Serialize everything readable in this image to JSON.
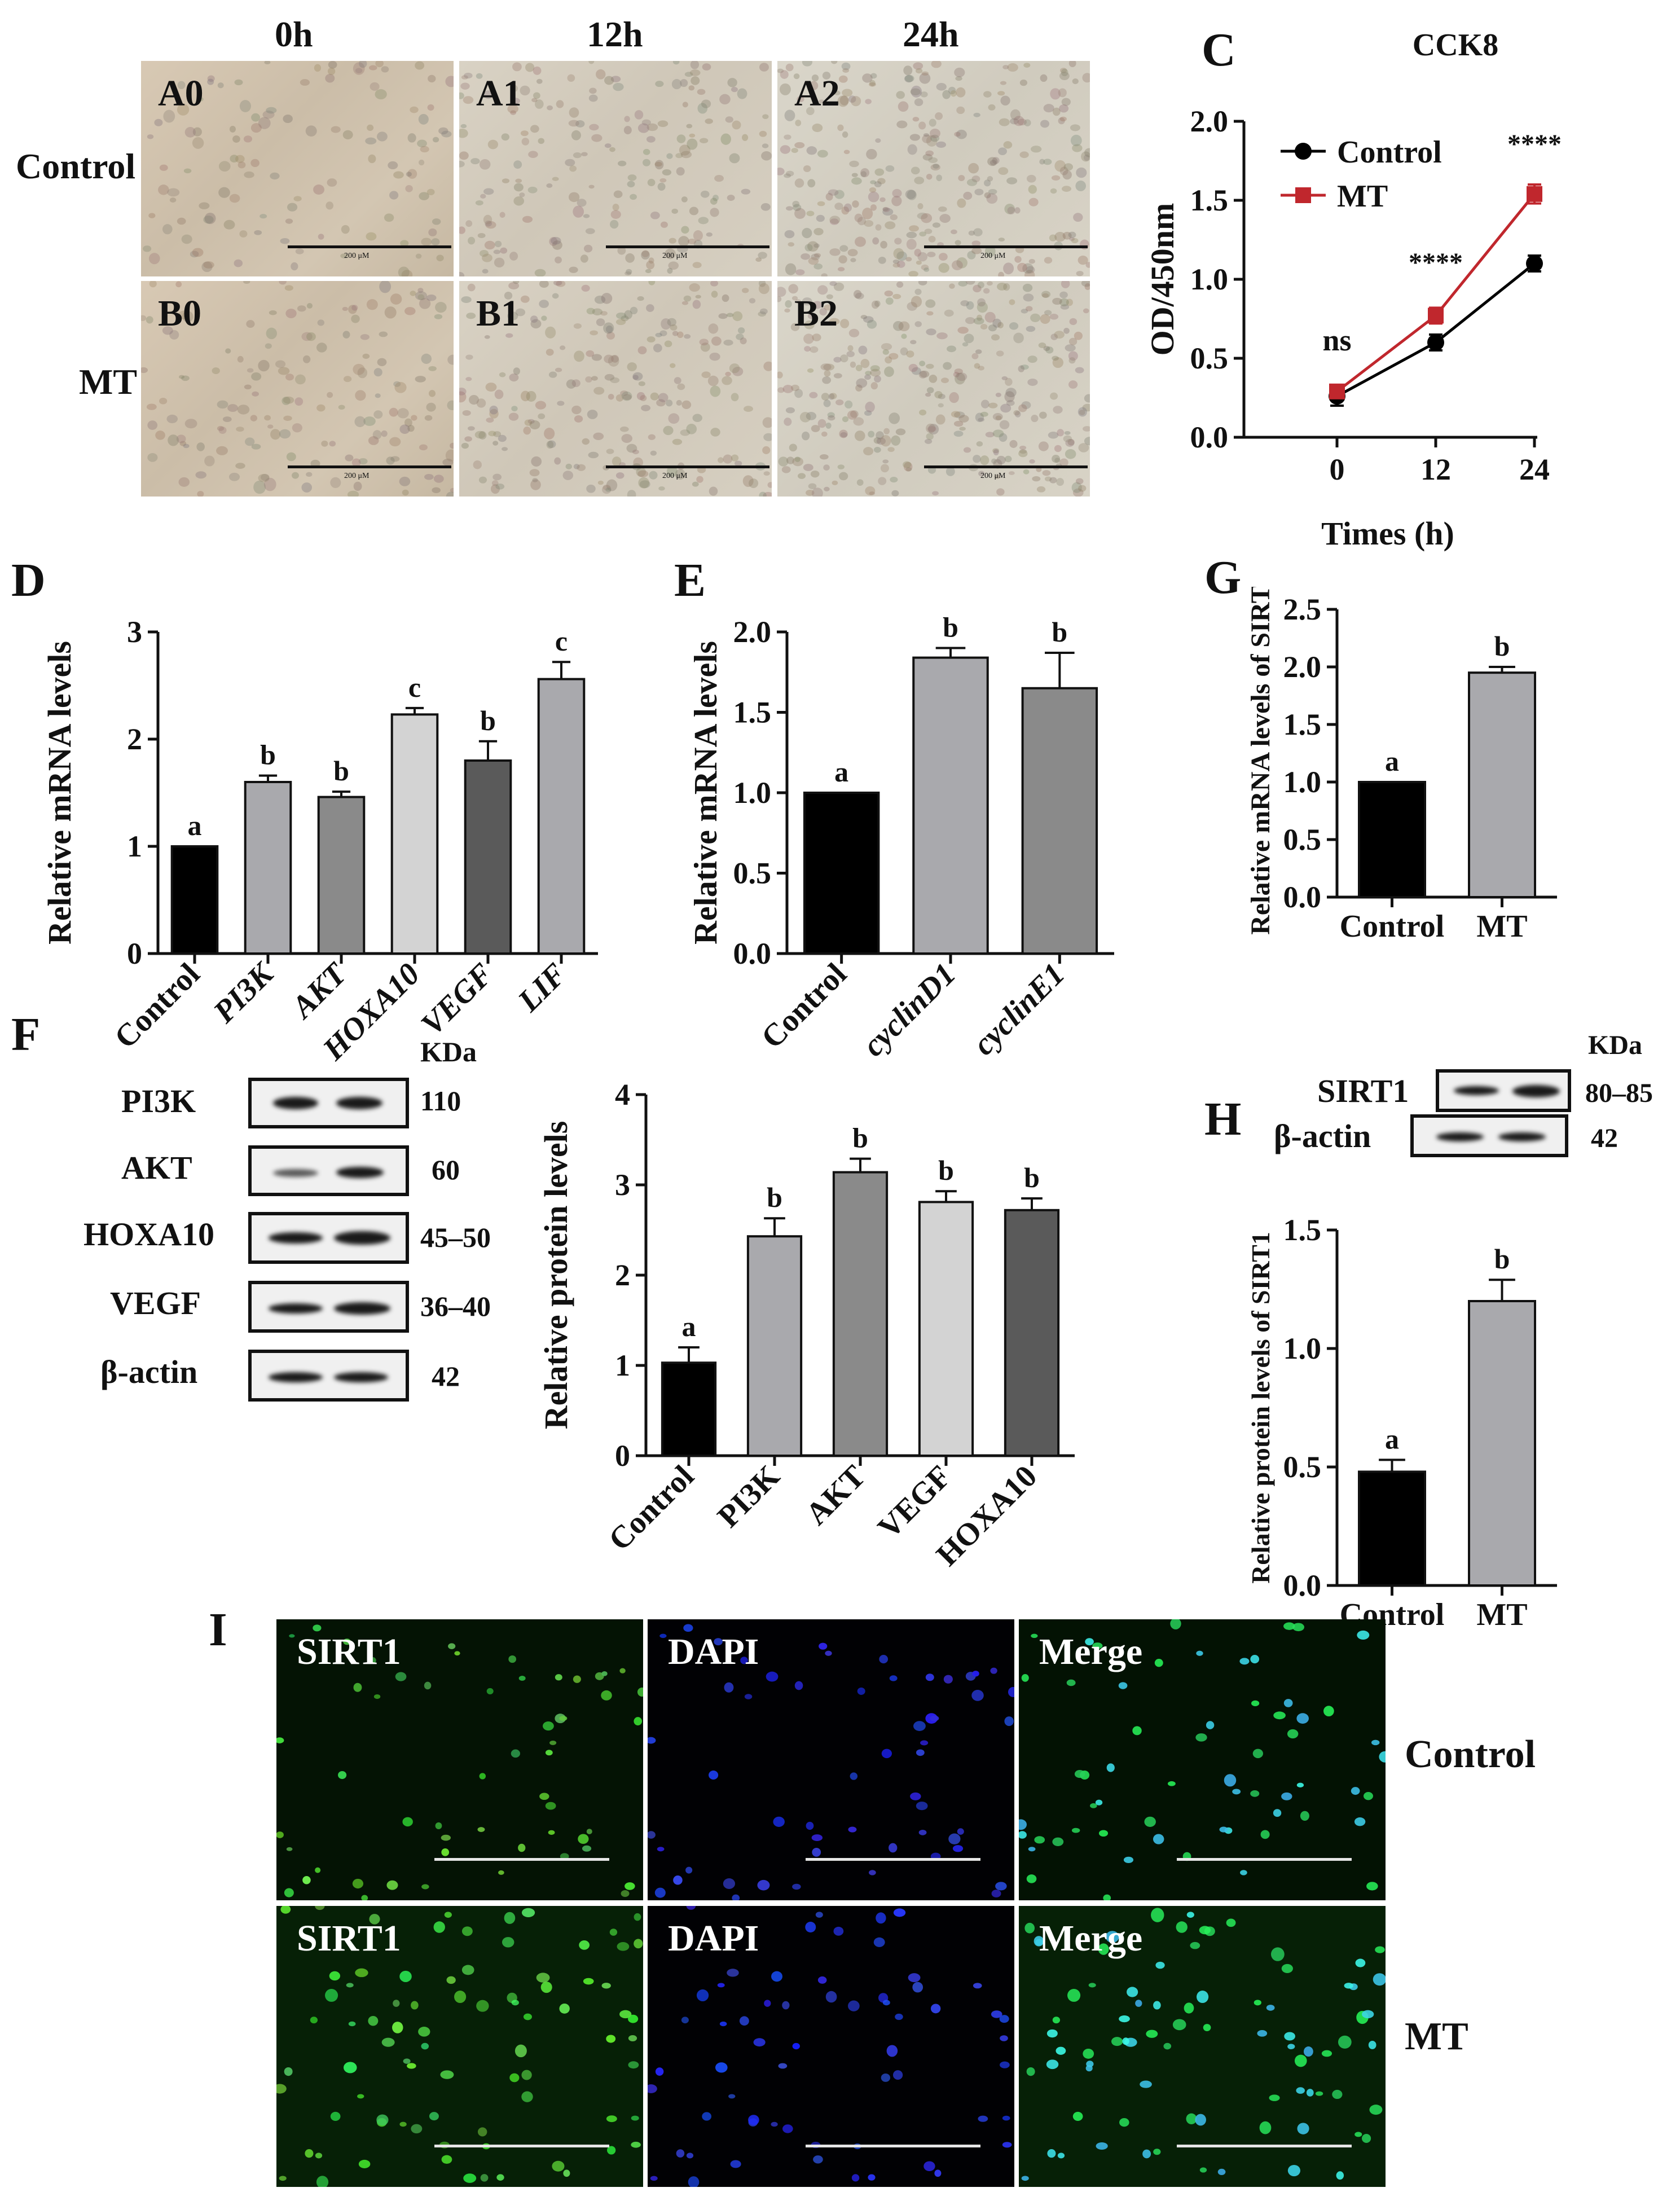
{
  "panelA": {
    "col_headers": [
      "0h",
      "12h",
      "24h"
    ],
    "row_labels": [
      "Control",
      "MT"
    ],
    "tiles": [
      "A0",
      "A1",
      "A2",
      "B0",
      "B1",
      "B2"
    ],
    "scale_text": "200 μM"
  },
  "panelC": {
    "letter": "C",
    "title": "CCK8",
    "sig_labels": [
      "ns",
      "****",
      "****"
    ]
  },
  "panelD": {
    "letter": "D",
    "letters": [
      "a",
      "b",
      "b",
      "c",
      "b",
      "c"
    ]
  },
  "panelE": {
    "letter": "E",
    "letters": [
      "a",
      "b",
      "b"
    ]
  },
  "panelG": {
    "letter": "G",
    "letters": [
      "a",
      "b"
    ]
  },
  "panelF": {
    "letter": "F",
    "kda_header": "KDa",
    "bands": [
      {
        "name": "PI3K",
        "kda": "110"
      },
      {
        "name": "AKT",
        "kda": "60"
      },
      {
        "name": "HOXA10",
        "kda": "45–50"
      },
      {
        "name": "VEGF",
        "kda": "36–40"
      },
      {
        "name": "β-actin",
        "kda": "42"
      }
    ],
    "letters": [
      "a",
      "b",
      "b",
      "b",
      "b"
    ]
  },
  "panelH": {
    "letter": "H",
    "kda_header": "KDa",
    "bands": [
      {
        "name": "SIRT1",
        "kda": "80–85"
      },
      {
        "name": "β-actin",
        "kda": "42"
      }
    ],
    "letters": [
      "a",
      "b"
    ]
  },
  "panelI": {
    "letter": "I",
    "channels": [
      "SIRT1",
      "DAPI",
      "Merge"
    ],
    "row_labels": [
      "Control",
      "MT"
    ]
  },
  "colors": {
    "control": "#000000",
    "mt": "#c0272d",
    "bar_gray_light": "#a9a9ad",
    "bar_gray_mid": "#8a8a8a",
    "bar_gray_pale": "#d3d3d3",
    "bar_gray_dark": "#5a5a5a"
  },
  "chart_data": [
    {
      "id": "C",
      "type": "line",
      "title": "CCK8",
      "xlabel": "Times (h)",
      "ylabel": "OD/450nm",
      "x": [
        0,
        12,
        24
      ],
      "xticks": [
        "0",
        "12",
        "24"
      ],
      "ylim": [
        0,
        2.0
      ],
      "yticks": [
        "0.0",
        "0.5",
        "1.0",
        "1.5",
        "2.0"
      ],
      "legend": "top-left",
      "series": [
        {
          "name": "Control",
          "values": [
            0.26,
            0.6,
            1.1
          ],
          "errors": [
            0.06,
            0.05,
            0.05
          ]
        },
        {
          "name": "MT",
          "values": [
            0.29,
            0.77,
            1.54
          ],
          "errors": [
            0.03,
            0.05,
            0.06
          ]
        }
      ]
    },
    {
      "id": "D",
      "type": "bar",
      "ylabel": "Relative mRNA levels",
      "categories": [
        "Control",
        "PI3K",
        "AKT",
        "HOXA10",
        "VEGF",
        "LIF"
      ],
      "values": [
        1.0,
        1.6,
        1.46,
        2.23,
        1.8,
        2.56
      ],
      "errors": [
        0,
        0.06,
        0.05,
        0.06,
        0.18,
        0.16
      ],
      "ylim": [
        0,
        3
      ],
      "yticks": [
        "0",
        "1",
        "2",
        "3"
      ]
    },
    {
      "id": "E",
      "type": "bar",
      "ylabel": "Relative mRNA levels",
      "categories": [
        "Control",
        "cyclinD1",
        "cyclinE1"
      ],
      "values": [
        1.0,
        1.84,
        1.65
      ],
      "errors": [
        0,
        0.06,
        0.22
      ],
      "ylim": [
        0,
        2.0
      ],
      "yticks": [
        "0.0",
        "0.5",
        "1.0",
        "1.5",
        "2.0"
      ]
    },
    {
      "id": "G",
      "type": "bar",
      "ylabel": "Relative mRNA levels of SIRT1",
      "categories": [
        "Control",
        "MT"
      ],
      "values": [
        1.0,
        1.95
      ],
      "errors": [
        0,
        0.05
      ],
      "ylim": [
        0,
        2.5
      ],
      "yticks": [
        "0.0",
        "0.5",
        "1.0",
        "1.5",
        "2.0",
        "2.5"
      ]
    },
    {
      "id": "F",
      "type": "bar",
      "ylabel": "Relative protein levels",
      "categories": [
        "Control",
        "PI3K",
        "AKT",
        "VEGF",
        "HOXA10"
      ],
      "values": [
        1.03,
        2.43,
        3.14,
        2.81,
        2.72
      ],
      "errors": [
        0.17,
        0.2,
        0.15,
        0.12,
        0.13
      ],
      "ylim": [
        0,
        4
      ],
      "yticks": [
        "0",
        "1",
        "2",
        "3",
        "4"
      ]
    },
    {
      "id": "H",
      "type": "bar",
      "ylabel": "Relative protein levels of SIRT1",
      "categories": [
        "Control",
        "MT"
      ],
      "values": [
        0.48,
        1.2
      ],
      "errors": [
        0.05,
        0.09
      ],
      "ylim": [
        0,
        1.5
      ],
      "yticks": [
        "0.0",
        "0.5",
        "1.0",
        "1.5"
      ]
    }
  ]
}
